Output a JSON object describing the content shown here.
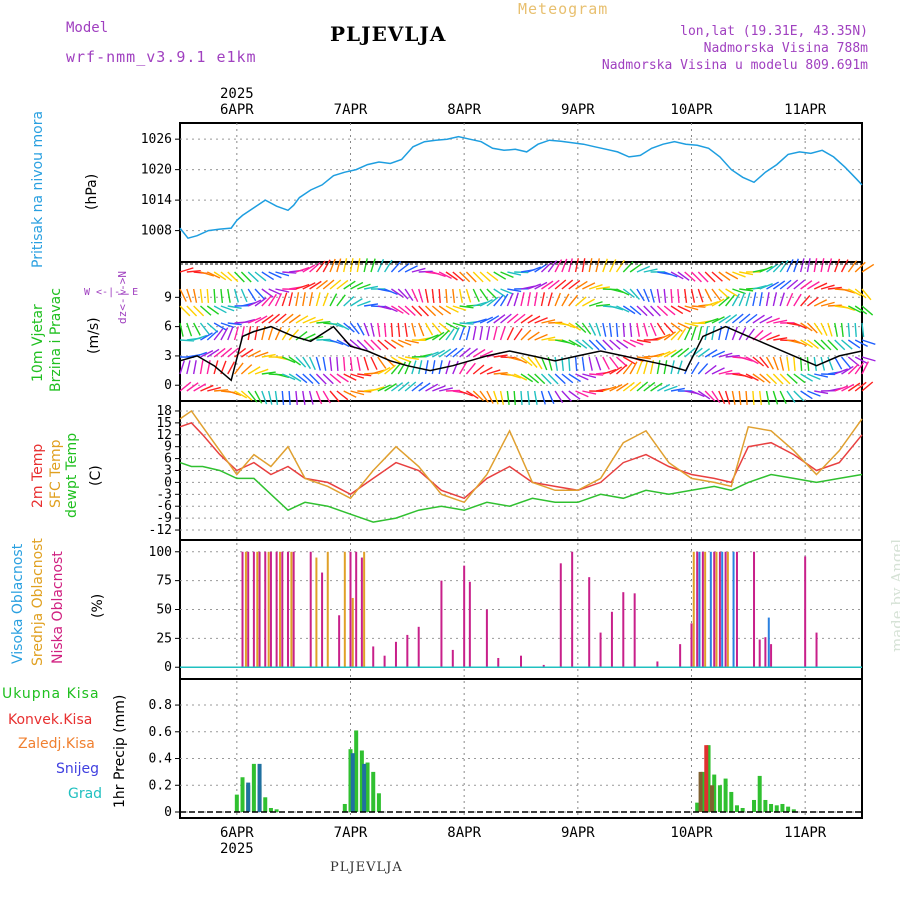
{
  "header": {
    "model_label": "Model",
    "model_name": "wrf-nmm_v3.9.1 e1km",
    "title": "PLJEVLJA",
    "meteogram_label": "Meteogram",
    "lonlat": "lon,lat (19.31E, 43.35N)",
    "elevation": "Nadmorska Visina 788m",
    "model_elevation": "Nadmorska Visina u modelu 809.691m",
    "footer": "PLJEVLJA",
    "credit": "made by Angel",
    "colors": {
      "model": "#a040c0",
      "meteogram": "#e8c070",
      "title": "#000000"
    }
  },
  "time_axis": {
    "year_label": "2025",
    "day_labels": [
      "6APR",
      "7APR",
      "8APR",
      "9APR",
      "10APR",
      "11APR"
    ],
    "day_positions": [
      0.5,
      1.5,
      2.5,
      3.5,
      4.5,
      5.5
    ],
    "range": [
      0,
      6.0
    ]
  },
  "chart_data": [
    {
      "type": "line",
      "panel": "pressure",
      "labels": [
        "Pritisak na nivou mora",
        "(hPa)"
      ],
      "label_colors": [
        "#2aa0e0",
        "#000000"
      ],
      "yticks": [
        1008,
        1014,
        1020,
        1026
      ],
      "ylim": [
        1003,
        1028
      ],
      "grid": true,
      "series": [
        {
          "color": "#1e9ee0",
          "x": [
            0,
            0.07,
            0.15,
            0.25,
            0.35,
            0.45,
            0.5,
            0.55,
            0.65,
            0.75,
            0.85,
            0.95,
            1.0,
            1.05,
            1.15,
            1.25,
            1.35,
            1.45,
            1.55,
            1.65,
            1.75,
            1.85,
            1.95,
            2.05,
            2.15,
            2.25,
            2.35,
            2.45,
            2.55,
            2.65,
            2.75,
            2.85,
            2.95,
            3.05,
            3.15,
            3.25,
            3.35,
            3.45,
            3.55,
            3.65,
            3.75,
            3.85,
            3.95,
            4.05,
            4.15,
            4.25,
            4.35,
            4.45,
            4.55,
            4.65,
            4.75,
            4.85,
            4.95,
            5.05,
            5.15,
            5.25,
            5.35,
            5.45,
            5.55,
            5.65,
            5.75,
            5.85,
            5.95,
            6.0
          ],
          "values": [
            1008.5,
            1006.5,
            1007.0,
            1008.0,
            1008.3,
            1008.5,
            1010.0,
            1011.0,
            1012.5,
            1014.0,
            1012.8,
            1012.0,
            1013.0,
            1014.5,
            1016.0,
            1017.0,
            1018.8,
            1019.5,
            1020.0,
            1021.0,
            1021.5,
            1021.2,
            1022.0,
            1024.5,
            1025.5,
            1025.8,
            1026.0,
            1026.5,
            1026.0,
            1025.5,
            1024.2,
            1023.8,
            1024.0,
            1023.5,
            1025.0,
            1025.8,
            1025.6,
            1025.3,
            1025.0,
            1024.5,
            1024.0,
            1023.5,
            1022.5,
            1022.8,
            1024.2,
            1025.0,
            1025.5,
            1025.0,
            1024.8,
            1024.2,
            1022.5,
            1020.0,
            1018.5,
            1017.5,
            1019.5,
            1021.0,
            1023.0,
            1023.5,
            1023.2,
            1023.8,
            1022.5,
            1020.5,
            1018.2,
            1017.0
          ]
        }
      ]
    },
    {
      "type": "scatter",
      "panel": "wind",
      "labels": [
        "Brzina i Pravac",
        "10m Vjetar",
        "(m/s)"
      ],
      "label_colors": [
        "#20c020",
        "#20c020",
        "#000000"
      ],
      "compass": "W <-|-> E",
      "compass_vertical": "dz<-|->N",
      "yticks": [
        0,
        3,
        6,
        9
      ],
      "ylim": [
        -1,
        12
      ],
      "grid": true,
      "series": [
        {
          "name": "",
          "color": "#000000",
          "x": [
            0,
            0.15,
            0.3,
            0.45,
            0.55,
            0.65,
            0.8,
            1.0,
            1.15,
            1.35,
            1.5,
            1.65,
            1.85,
            2.0,
            2.2,
            2.4,
            2.55,
            2.7,
            2.9,
            3.1,
            3.3,
            3.5,
            3.7,
            3.9,
            4.1,
            4.3,
            4.45,
            4.6,
            4.8,
            5.0,
            5.2,
            5.4,
            5.6,
            5.8,
            6.0
          ],
          "values": [
            2.5,
            3.0,
            2.0,
            0.5,
            5.0,
            5.5,
            6.0,
            5.0,
            4.5,
            6.0,
            4.0,
            3.5,
            2.5,
            2.0,
            1.5,
            2.0,
            2.5,
            3.0,
            3.5,
            3.0,
            2.5,
            3.0,
            3.5,
            3.0,
            2.5,
            2.0,
            1.5,
            5.0,
            6.0,
            5.0,
            4.0,
            3.0,
            2.0,
            3.0,
            3.5
          ]
        }
      ]
    },
    {
      "type": "line",
      "panel": "temperature",
      "labels": [
        "2m Temp",
        "SFC Temp",
        "dewpt Temp",
        "(C)"
      ],
      "label_colors": [
        "#e83030",
        "#e0a020",
        "#20c020",
        "#000000"
      ],
      "yticks": [
        -12,
        -9,
        -6,
        -3,
        0,
        3,
        6,
        9,
        12,
        15,
        18
      ],
      "ylim": [
        -13,
        19
      ],
      "grid": true,
      "series": [
        {
          "name": "2m Temp",
          "color": "#e84040",
          "x": [
            0,
            0.1,
            0.2,
            0.35,
            0.5,
            0.65,
            0.8,
            0.95,
            1.1,
            1.3,
            1.5,
            1.7,
            1.9,
            2.1,
            2.3,
            2.5,
            2.7,
            2.9,
            3.1,
            3.3,
            3.5,
            3.7,
            3.9,
            4.1,
            4.3,
            4.5,
            4.7,
            4.85,
            5.0,
            5.2,
            5.4,
            5.6,
            5.8,
            6.0
          ],
          "values": [
            14,
            15,
            12,
            7,
            3,
            5,
            2,
            4,
            1,
            0,
            -3,
            1,
            5,
            3,
            -2,
            -4,
            1,
            4,
            0,
            -1,
            -2,
            0,
            5,
            7,
            4,
            2,
            1,
            0,
            9,
            10,
            7,
            3,
            5,
            12
          ]
        },
        {
          "name": "SFC Temp",
          "color": "#e0a030",
          "x": [
            0,
            0.1,
            0.2,
            0.35,
            0.5,
            0.65,
            0.8,
            0.95,
            1.1,
            1.3,
            1.5,
            1.7,
            1.9,
            2.1,
            2.3,
            2.5,
            2.7,
            2.9,
            3.1,
            3.3,
            3.5,
            3.7,
            3.9,
            4.1,
            4.3,
            4.5,
            4.7,
            4.85,
            5.0,
            5.2,
            5.4,
            5.6,
            5.8,
            6.0
          ],
          "values": [
            16,
            18,
            14,
            8,
            2,
            7,
            4,
            9,
            1,
            -1,
            -4,
            3,
            9,
            4,
            -3,
            -5,
            2,
            13,
            0,
            -2,
            -2,
            1,
            10,
            13,
            5,
            1,
            0,
            -1,
            14,
            13,
            8,
            2,
            8,
            16
          ]
        },
        {
          "name": "dewpt Temp",
          "color": "#30c030",
          "x": [
            0,
            0.1,
            0.2,
            0.35,
            0.5,
            0.65,
            0.8,
            0.95,
            1.1,
            1.3,
            1.5,
            1.7,
            1.9,
            2.1,
            2.3,
            2.5,
            2.7,
            2.9,
            3.1,
            3.3,
            3.5,
            3.7,
            3.9,
            4.1,
            4.3,
            4.5,
            4.7,
            4.85,
            5.0,
            5.2,
            5.4,
            5.6,
            5.8,
            6.0
          ],
          "values": [
            5,
            4,
            4,
            3,
            1,
            1,
            -3,
            -7,
            -5,
            -6,
            -8,
            -10,
            -9,
            -7,
            -6,
            -7,
            -5,
            -6,
            -4,
            -5,
            -5,
            -3,
            -4,
            -2,
            -3,
            -2,
            -1,
            -2,
            0,
            2,
            1,
            0,
            1,
            2
          ]
        }
      ]
    },
    {
      "type": "bar",
      "panel": "cloud",
      "labels": [
        "Visoka Oblacnost",
        "Srednja Oblacnost",
        "Niska Oblacnost",
        "(%)"
      ],
      "label_colors": [
        "#2aa0e0",
        "#e0a020",
        "#d02080",
        "#000000"
      ],
      "yticks": [
        0,
        25,
        50,
        75,
        100
      ],
      "ylim": [
        -5,
        105
      ],
      "grid": true,
      "series": [
        {
          "name": "Niska Oblacnost",
          "color": "#c8208a",
          "x": [
            0.55,
            0.6,
            0.65,
            0.7,
            0.75,
            0.8,
            0.85,
            0.9,
            0.95,
            1.0,
            1.15,
            1.25,
            1.4,
            1.5,
            1.55,
            1.6,
            1.7,
            1.8,
            1.9,
            2.0,
            2.1,
            2.3,
            2.4,
            2.5,
            2.55,
            2.7,
            2.8,
            3.0,
            3.2,
            3.35,
            3.45,
            3.6,
            3.7,
            3.8,
            3.9,
            4.0,
            4.2,
            4.4,
            4.5,
            4.55,
            4.6,
            4.7,
            4.75,
            4.8,
            4.9,
            5.05,
            5.1,
            5.15,
            5.2,
            5.5,
            5.6
          ],
          "values": [
            100,
            100,
            100,
            100,
            100,
            100,
            100,
            100,
            100,
            100,
            100,
            82,
            45,
            100,
            100,
            95,
            18,
            10,
            22,
            28,
            35,
            75,
            15,
            88,
            74,
            50,
            8,
            10,
            2,
            90,
            100,
            78,
            30,
            48,
            65,
            64,
            5,
            20,
            38,
            100,
            100,
            100,
            100,
            100,
            100,
            100,
            24,
            26,
            20,
            96,
            30
          ]
        },
        {
          "name": "Srednja Oblacnost",
          "color": "#e0a028",
          "x": [
            0.58,
            0.68,
            0.78,
            0.88,
            0.98,
            1.2,
            1.3,
            1.45,
            1.52,
            1.62,
            4.52,
            4.62,
            4.72,
            4.82
          ],
          "values": [
            100,
            100,
            100,
            100,
            100,
            95,
            100,
            100,
            60,
            100,
            100,
            100,
            100,
            100
          ]
        },
        {
          "name": "Visoka Oblacnost",
          "color": "#2a80e0",
          "x": [
            4.57,
            4.67,
            4.77,
            4.87,
            5.18
          ],
          "values": [
            100,
            100,
            100,
            100,
            43
          ]
        }
      ]
    },
    {
      "type": "bar",
      "panel": "precipitation",
      "labels": [
        "Ukupna Kisa",
        "Konvek.Kisa",
        "Zaledj.Kisa",
        "Snijeg",
        "Grad",
        "1hr Precip (mm)"
      ],
      "label_colors": [
        "#20c020",
        "#e83030",
        "#f08030",
        "#4040e0",
        "#20c0c0",
        "#000000"
      ],
      "yticks": [
        0,
        0.2,
        0.4,
        0.6,
        0.8
      ],
      "ylim": [
        0,
        0.95
      ],
      "grid": true,
      "series": [
        {
          "name": "Ukupna Kisa",
          "color": "#30c030",
          "x": [
            0.5,
            0.55,
            0.6,
            0.65,
            0.7,
            0.75,
            0.8,
            0.85,
            1.45,
            1.5,
            1.55,
            1.6,
            1.65,
            1.7,
            1.75,
            4.55,
            4.6,
            4.65,
            4.7,
            4.75,
            4.8,
            4.85,
            4.9,
            4.95,
            5.05,
            5.1,
            5.15,
            5.2,
            5.25,
            5.3,
            5.35,
            5.4
          ],
          "values": [
            0.13,
            0.26,
            0.2,
            0.36,
            0.2,
            0.11,
            0.03,
            0.02,
            0.06,
            0.47,
            0.61,
            0.46,
            0.37,
            0.3,
            0.14,
            0.07,
            0.3,
            0.5,
            0.28,
            0.2,
            0.25,
            0.15,
            0.05,
            0.03,
            0.09,
            0.27,
            0.09,
            0.06,
            0.05,
            0.06,
            0.04,
            0.02
          ]
        },
        {
          "name": "Snijeg",
          "color": "#2070a0",
          "x": [
            0.6,
            0.7,
            1.52,
            1.62
          ],
          "values": [
            0.22,
            0.36,
            0.44,
            0.36
          ]
        },
        {
          "name": "Konvek.Kisa",
          "color": "#e03030",
          "x": [
            4.63
          ],
          "values": [
            0.5
          ]
        },
        {
          "name": "Zaledj.Kisa",
          "color": "#806030",
          "x": [
            4.58,
            4.68
          ],
          "values": [
            0.3,
            0.2
          ]
        }
      ]
    }
  ]
}
